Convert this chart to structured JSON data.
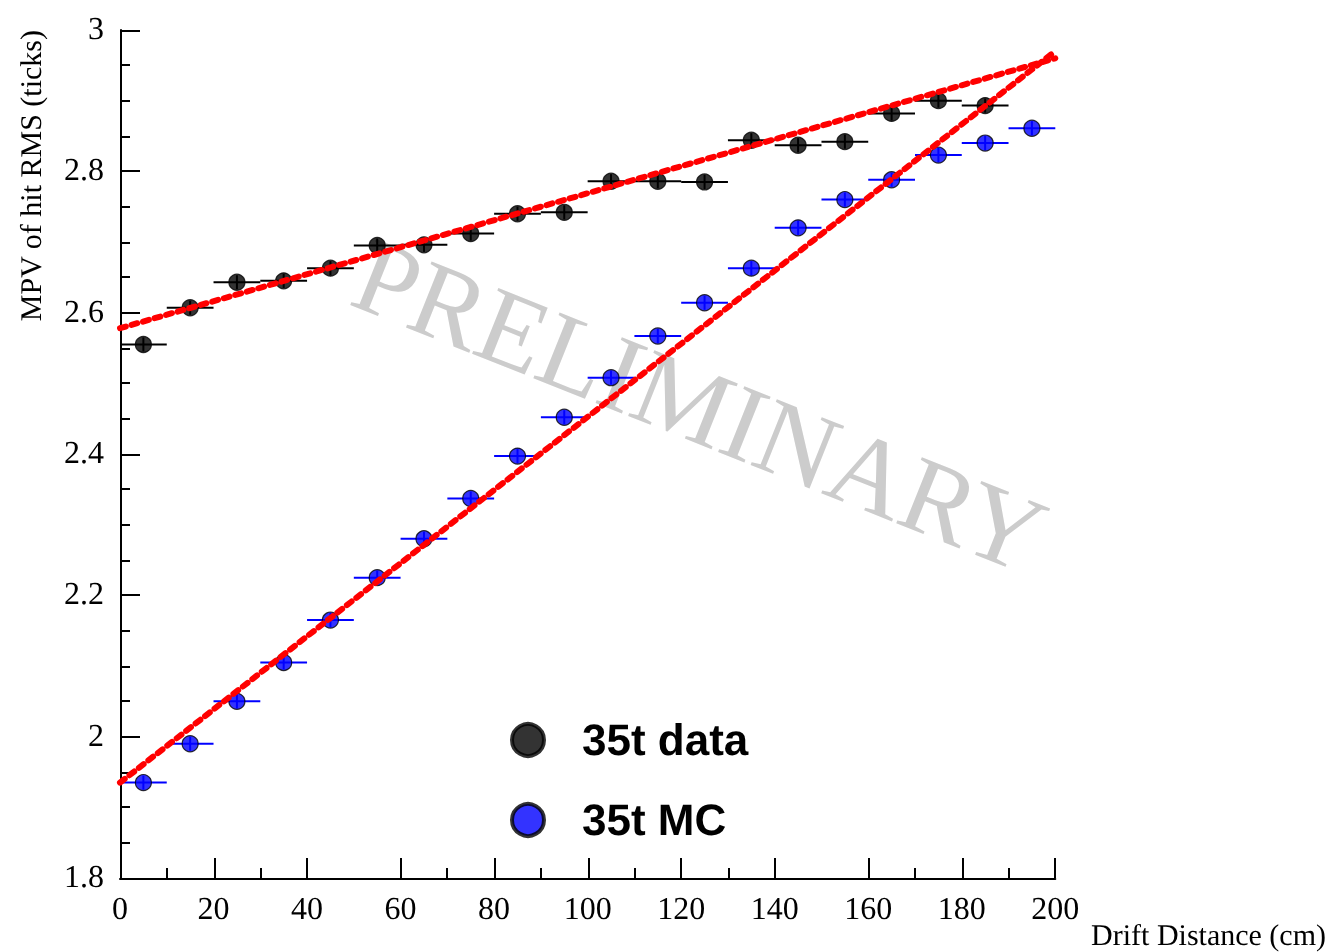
{
  "chart_data": {
    "type": "scatter",
    "xlabel": "Drift Distance (cm)",
    "ylabel": "MPV of hit RMS (ticks)",
    "xlim": [
      0,
      200
    ],
    "xticks": [
      0,
      20,
      40,
      60,
      80,
      100,
      120,
      140,
      160,
      180,
      200
    ],
    "ylim": [
      1.8,
      3
    ],
    "yticks": [
      1.8,
      2,
      2.2,
      2.4,
      2.6,
      2.8,
      3
    ],
    "grid": false,
    "legend": "bottom",
    "marker": "circle",
    "annotations": [
      "PRELIMINARY"
    ],
    "series": [
      {
        "name": "35t data",
        "color": "#000000",
        "x": [
          5,
          15,
          25,
          35,
          45,
          55,
          65,
          75,
          85,
          95,
          105,
          115,
          125,
          135,
          145,
          155,
          165,
          175,
          185
        ],
        "values": [
          2.555,
          2.607,
          2.643,
          2.645,
          2.663,
          2.695,
          2.696,
          2.712,
          2.74,
          2.742,
          2.786,
          2.786,
          2.785,
          2.844,
          2.837,
          2.842,
          2.882,
          2.9,
          2.893
        ],
        "xerrors": [
          5,
          5,
          5,
          5,
          5,
          5,
          5,
          5,
          5,
          5,
          5,
          5,
          5,
          5,
          5,
          5,
          5,
          5,
          5
        ],
        "errors": [
          0.01,
          0.01,
          0.01,
          0.01,
          0.01,
          0.01,
          0.01,
          0.01,
          0.01,
          0.01,
          0.01,
          0.01,
          0.01,
          0.01,
          0.01,
          0.01,
          0.01,
          0.01,
          0.01
        ]
      },
      {
        "name": "35t MC",
        "color": "#0000ff",
        "x": [
          5,
          15,
          25,
          35,
          45,
          55,
          65,
          75,
          85,
          95,
          105,
          115,
          125,
          135,
          145,
          155,
          165,
          175,
          185,
          195
        ],
        "values": [
          1.935,
          1.99,
          2.05,
          2.105,
          2.165,
          2.225,
          2.28,
          2.337,
          2.397,
          2.452,
          2.508,
          2.567,
          2.614,
          2.663,
          2.72,
          2.76,
          2.788,
          2.823,
          2.84,
          2.861
        ],
        "xerrors": [
          5,
          5,
          5,
          5,
          5,
          5,
          5,
          5,
          5,
          5,
          5,
          5,
          5,
          5,
          5,
          5,
          5,
          5,
          5,
          5
        ],
        "errors": [
          0.01,
          0.01,
          0.01,
          0.01,
          0.01,
          0.01,
          0.01,
          0.01,
          0.01,
          0.01,
          0.01,
          0.01,
          0.01,
          0.01,
          0.01,
          0.01,
          0.01,
          0.01,
          0.01,
          0.01
        ]
      },
      {
        "type": "line",
        "color": "#ff0000",
        "line_style": "dotted",
        "marker": "none",
        "x": [
          0,
          200
        ],
        "values": [
          2.578,
          2.96
        ]
      },
      {
        "type": "line",
        "color": "#ff0000",
        "line_style": "dotted",
        "marker": "none",
        "x": [
          0,
          200
        ],
        "values": [
          1.935,
          2.97
        ]
      }
    ]
  }
}
